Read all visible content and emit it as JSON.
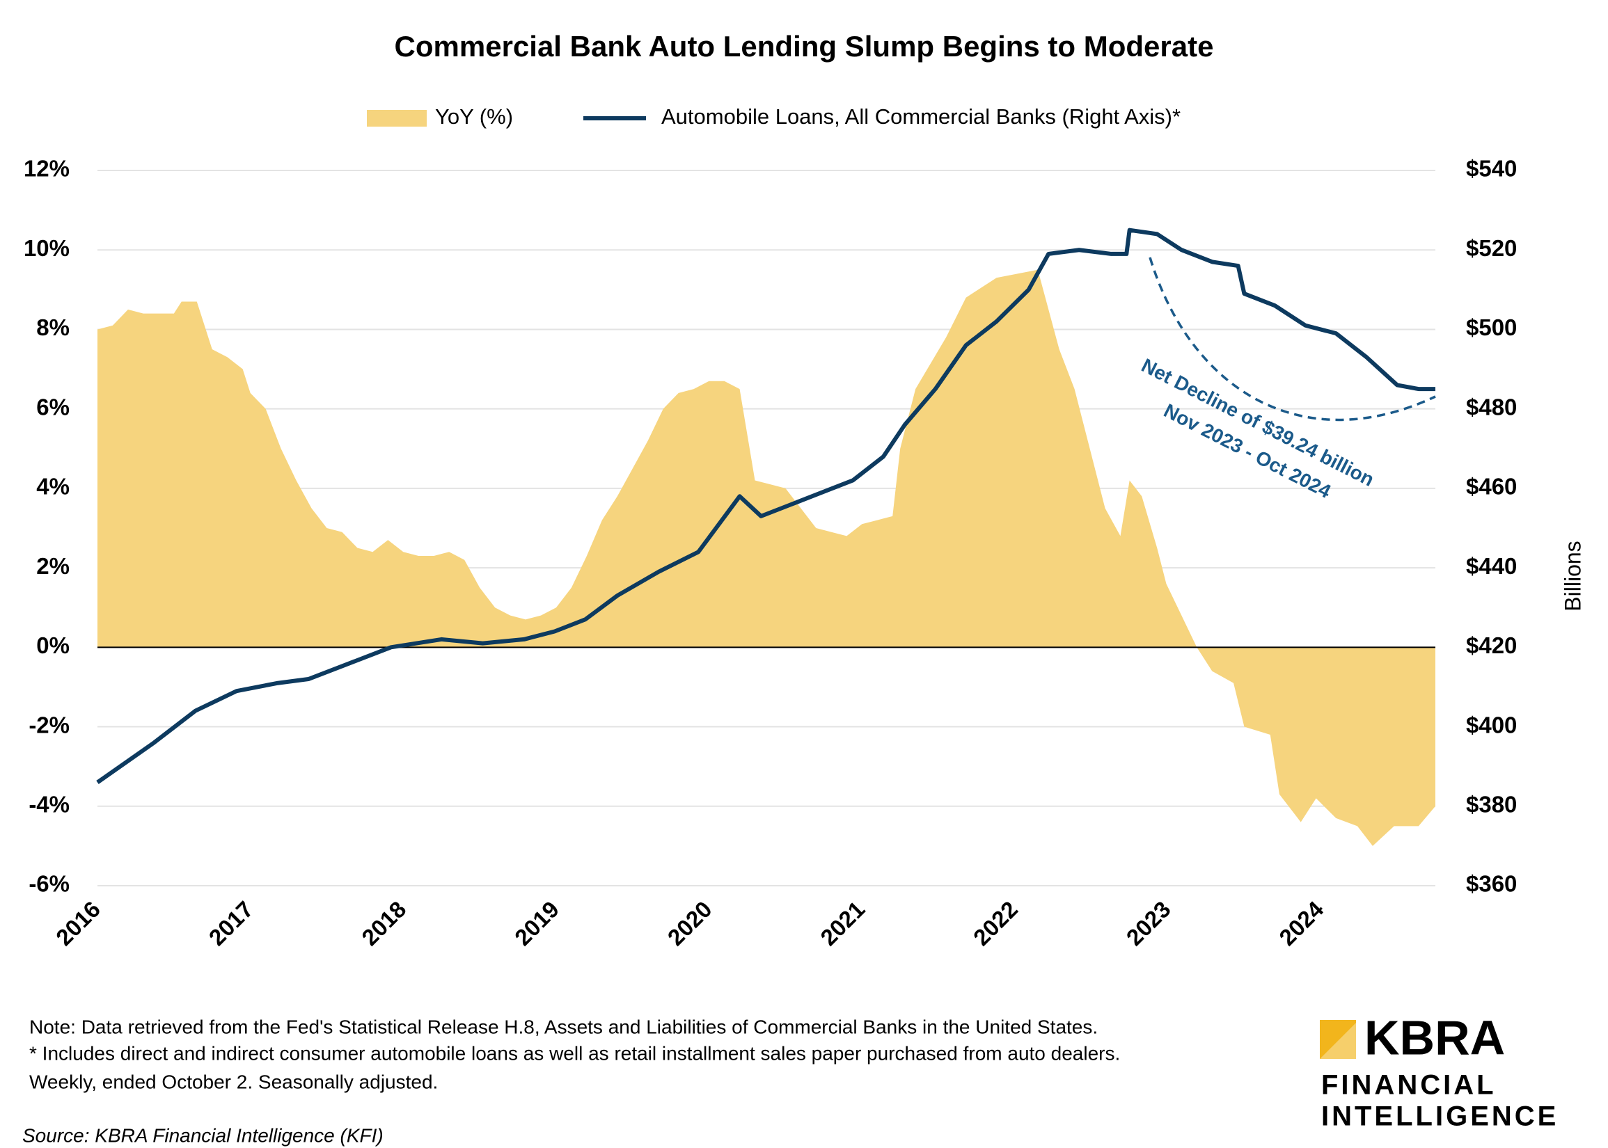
{
  "chart_data": {
    "type": "area-line",
    "title": "Commercial Bank Auto Lending Slump Begins to Moderate",
    "y2_label": "Billions",
    "annotation": [
      "Net Decline of $39.24 billion",
      "Nov 2023 - Oct 2024"
    ],
    "xlim": [
      2016,
      2024.75
    ],
    "xticks": [
      2016,
      2017,
      2018,
      2019,
      2020,
      2021,
      2022,
      2023,
      2024
    ],
    "ylim": [
      -6,
      12
    ],
    "yticks": [
      {
        "value": -6,
        "label": "-6%"
      },
      {
        "value": -4,
        "label": "-4%"
      },
      {
        "value": -2,
        "label": "-2%"
      },
      {
        "value": 0,
        "label": "0%"
      },
      {
        "value": 2,
        "label": "2%"
      },
      {
        "value": 4,
        "label": "4%"
      },
      {
        "value": 6,
        "label": "6%"
      },
      {
        "value": 8,
        "label": "8%"
      },
      {
        "value": 10,
        "label": "10%"
      },
      {
        "value": 12,
        "label": "12%"
      }
    ],
    "y2lim": [
      360,
      540
    ],
    "y2ticks": [
      {
        "value": 360,
        "label": "$360"
      },
      {
        "value": 380,
        "label": "$380"
      },
      {
        "value": 400,
        "label": "$400"
      },
      {
        "value": 420,
        "label": "$420"
      },
      {
        "value": 440,
        "label": "$440"
      },
      {
        "value": 460,
        "label": "$460"
      },
      {
        "value": 480,
        "label": "$480"
      },
      {
        "value": 500,
        "label": "$500"
      },
      {
        "value": 520,
        "label": "$520"
      },
      {
        "value": 540,
        "label": "$540"
      }
    ],
    "grid": true,
    "series": [
      {
        "name": "YoY (%)",
        "kind": "area",
        "color": "#f6d47e",
        "x": [
          2016.0,
          2016.1,
          2016.2,
          2016.3,
          2016.4,
          2016.5,
          2016.55,
          2016.65,
          2016.75,
          2016.85,
          2016.95,
          2017.0,
          2017.1,
          2017.2,
          2017.3,
          2017.4,
          2017.5,
          2017.6,
          2017.7,
          2017.8,
          2017.9,
          2018.0,
          2018.1,
          2018.2,
          2018.3,
          2018.4,
          2018.5,
          2018.6,
          2018.7,
          2018.8,
          2018.9,
          2019.0,
          2019.1,
          2019.2,
          2019.3,
          2019.4,
          2019.5,
          2019.6,
          2019.7,
          2019.8,
          2019.9,
          2020.0,
          2020.1,
          2020.2,
          2020.3,
          2020.4,
          2020.5,
          2020.6,
          2020.7,
          2020.8,
          2020.9,
          2021.0,
          2021.1,
          2021.2,
          2021.25,
          2021.35,
          2021.55,
          2021.68,
          2021.88,
          2022.15,
          2022.22,
          2022.29,
          2022.39,
          2022.49,
          2022.59,
          2022.69,
          2022.75,
          2022.83,
          2022.93,
          2022.99,
          2023.09,
          2023.19,
          2023.29,
          2023.43,
          2023.5,
          2023.67,
          2023.73,
          2023.87,
          2023.97,
          2024.1,
          2024.24,
          2024.34,
          2024.48,
          2024.64,
          2024.75
        ],
        "values": [
          8.0,
          8.1,
          8.5,
          8.4,
          8.4,
          8.4,
          8.7,
          8.7,
          7.5,
          7.3,
          7.0,
          6.4,
          6.0,
          5.0,
          4.2,
          3.5,
          3.0,
          2.9,
          2.5,
          2.4,
          2.7,
          2.4,
          2.3,
          2.3,
          2.4,
          2.2,
          1.5,
          1.0,
          0.8,
          0.7,
          0.8,
          1.0,
          1.5,
          2.3,
          3.2,
          3.8,
          4.5,
          5.2,
          6.0,
          6.4,
          6.5,
          6.7,
          6.7,
          6.5,
          4.2,
          4.1,
          4.0,
          3.5,
          3.0,
          2.9,
          2.8,
          3.1,
          3.2,
          3.3,
          5.0,
          6.5,
          7.8,
          8.8,
          9.3,
          9.5,
          8.5,
          7.5,
          6.5,
          5.0,
          3.5,
          2.8,
          4.2,
          3.8,
          2.5,
          1.6,
          0.8,
          0.0,
          -0.6,
          -0.9,
          -2.0,
          -2.2,
          -3.7,
          -4.4,
          -3.8,
          -4.3,
          -4.5,
          -5.0,
          -4.5,
          -4.5,
          -4.0
        ]
      },
      {
        "name": "Automobile Loans, All Commercial Banks (Right Axis)*",
        "kind": "line",
        "axis": "y2",
        "color": "#0d3a5f",
        "x": [
          2016.0,
          2016.37,
          2016.64,
          2016.91,
          2017.18,
          2017.38,
          2017.65,
          2017.92,
          2018.25,
          2018.52,
          2018.79,
          2018.99,
          2019.19,
          2019.4,
          2019.67,
          2019.93,
          2020.2,
          2020.34,
          2020.54,
          2020.74,
          2020.94,
          2021.14,
          2021.28,
          2021.48,
          2021.68,
          2021.88,
          2022.09,
          2022.22,
          2022.42,
          2022.63,
          2022.73,
          2022.75,
          2022.93,
          2023.09,
          2023.29,
          2023.46,
          2023.5,
          2023.7,
          2023.9,
          2024.1,
          2024.3,
          2024.5,
          2024.64,
          2024.75
        ],
        "values": [
          386,
          396,
          404,
          409,
          411,
          412,
          416,
          420,
          422,
          421,
          422,
          424,
          427,
          433,
          439,
          444,
          458,
          453,
          456,
          459,
          462,
          468,
          476,
          485,
          496,
          502,
          510,
          519,
          520,
          519,
          519,
          525,
          524,
          520,
          517,
          516,
          509,
          506,
          501,
          499,
          493,
          486,
          485,
          485
        ]
      }
    ]
  },
  "notes": [
    "Note: Data retrieved from the Fed's Statistical Release H.8, Assets and Liabilities of Commercial Banks in the United States.",
    "* Includes direct and indirect consumer automobile loans as well as retail installment sales paper purchased from auto dealers.",
    "Weekly, ended October 2. Seasonally adjusted."
  ],
  "source": "Source: KBRA Financial Intelligence (KFI)",
  "logo": {
    "brand": "KBRA",
    "line1": "FINANCIAL",
    "line2": "INTELLIGENCE"
  }
}
